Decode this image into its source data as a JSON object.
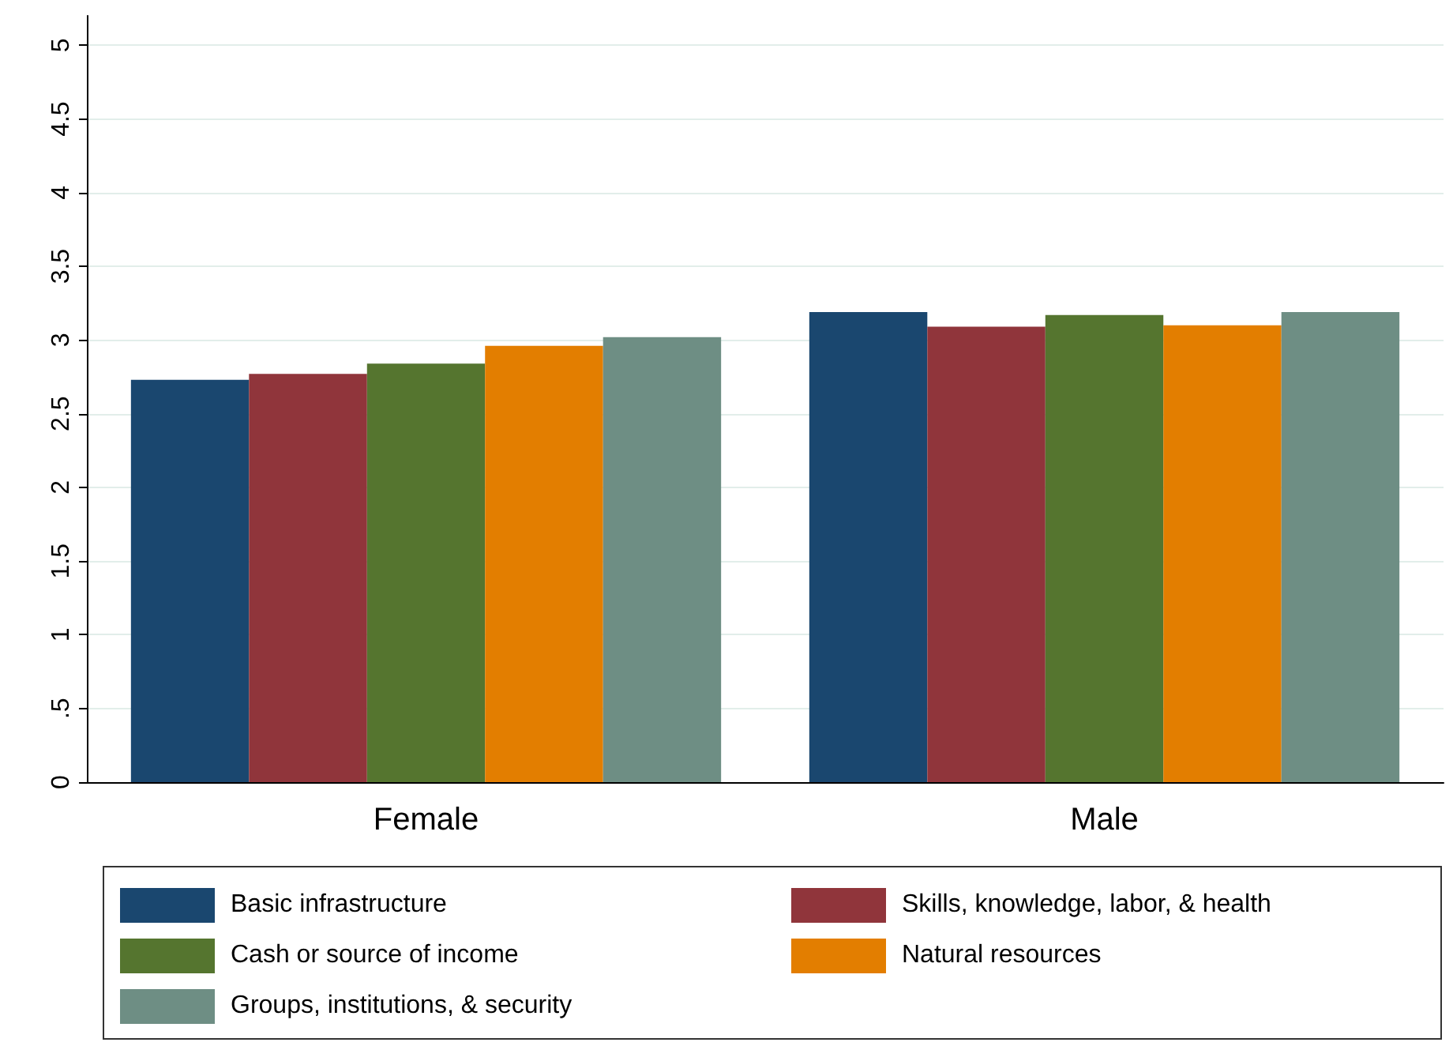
{
  "chart_data": {
    "type": "bar",
    "categories": [
      "Female",
      "Male"
    ],
    "series": [
      {
        "name": "Basic infrastructure",
        "color": "#1a476f",
        "values": [
          2.73,
          3.19
        ]
      },
      {
        "name": "Skills, knowledge, labor, & health",
        "color": "#90353b",
        "values": [
          2.77,
          3.09
        ]
      },
      {
        "name": "Cash or source of income",
        "color": "#55752f",
        "values": [
          2.84,
          3.17
        ]
      },
      {
        "name": "Natural resources",
        "color": "#e37e00",
        "values": [
          2.96,
          3.1
        ]
      },
      {
        "name": "Groups, institutions, & security",
        "color": "#6e8e84",
        "values": [
          3.02,
          3.19
        ]
      }
    ],
    "ylim": [
      0,
      5.2
    ],
    "yticks": [
      0,
      {
        "value": 0.5,
        "label": ".5"
      },
      1,
      1.5,
      2,
      2.5,
      3,
      3.5,
      4,
      4.5,
      5
    ],
    "grid": "y",
    "legend": "bottom"
  }
}
